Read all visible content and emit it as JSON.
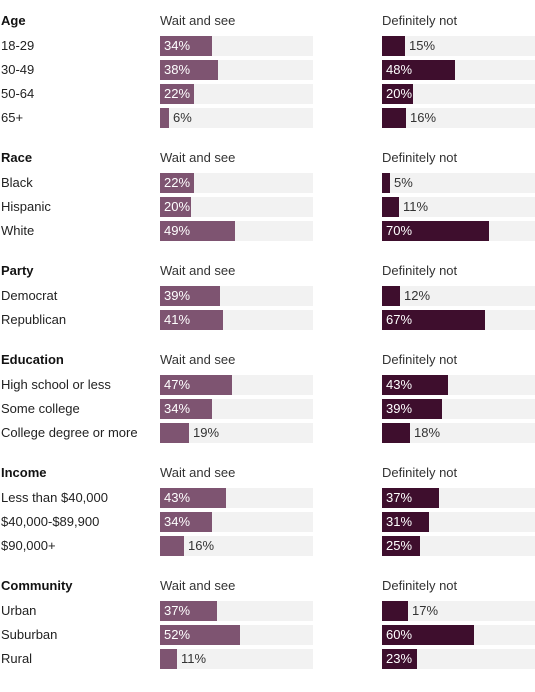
{
  "chart_data": {
    "type": "bar",
    "orientation": "horizontal",
    "xlim": [
      0,
      100
    ],
    "unit": "%",
    "columns": [
      "Wait and see",
      "Definitely not"
    ],
    "colors": {
      "Wait and see": "#7e5471",
      "Definitely not": "#3e0e2d",
      "track": "#f2f2f2"
    },
    "groups": [
      {
        "title": "Age",
        "rows": [
          {
            "label": "18-29",
            "values": [
              34,
              15
            ],
            "texts": [
              "34%",
              "15%"
            ]
          },
          {
            "label": "30-49",
            "values": [
              38,
              48
            ],
            "texts": [
              "38%",
              "48%"
            ]
          },
          {
            "label": "50-64",
            "values": [
              22,
              20
            ],
            "texts": [
              "22%",
              "20%"
            ]
          },
          {
            "label": "65+",
            "values": [
              6,
              16
            ],
            "texts": [
              "6%",
              "16%"
            ]
          }
        ]
      },
      {
        "title": "Race",
        "rows": [
          {
            "label": "Black",
            "values": [
              22,
              5
            ],
            "texts": [
              "22%",
              "5%"
            ]
          },
          {
            "label": "Hispanic",
            "values": [
              20,
              11
            ],
            "texts": [
              "20%",
              "11%"
            ]
          },
          {
            "label": "White",
            "values": [
              49,
              70
            ],
            "texts": [
              "49%",
              "70%"
            ]
          }
        ]
      },
      {
        "title": "Party",
        "rows": [
          {
            "label": "Democrat",
            "values": [
              39,
              12
            ],
            "texts": [
              "39%",
              "12%"
            ]
          },
          {
            "label": "Republican",
            "values": [
              41,
              67
            ],
            "texts": [
              "41%",
              "67%"
            ]
          }
        ]
      },
      {
        "title": "Education",
        "rows": [
          {
            "label": "High school or less",
            "values": [
              47,
              43
            ],
            "texts": [
              "47%",
              "43%"
            ]
          },
          {
            "label": "Some college",
            "values": [
              34,
              39
            ],
            "texts": [
              "34%",
              "39%"
            ]
          },
          {
            "label": "College degree or more",
            "values": [
              19,
              18
            ],
            "texts": [
              "19%",
              "18%"
            ]
          }
        ]
      },
      {
        "title": "Income",
        "rows": [
          {
            "label": "Less than $40,000",
            "values": [
              43,
              37
            ],
            "texts": [
              "43%",
              "37%"
            ]
          },
          {
            "label": "$40,000-$89,900",
            "values": [
              34,
              31
            ],
            "texts": [
              "34%",
              "31%"
            ]
          },
          {
            "label": "$90,000+",
            "values": [
              16,
              25
            ],
            "texts": [
              "16%",
              "25%"
            ]
          }
        ]
      },
      {
        "title": "Community",
        "rows": [
          {
            "label": "Urban",
            "values": [
              37,
              17
            ],
            "texts": [
              "37%",
              "17%"
            ]
          },
          {
            "label": "Suburban",
            "values": [
              52,
              60
            ],
            "texts": [
              "52%",
              "60%"
            ]
          },
          {
            "label": "Rural",
            "values": [
              11,
              23
            ],
            "texts": [
              "11%",
              "23%"
            ]
          }
        ]
      }
    ]
  }
}
